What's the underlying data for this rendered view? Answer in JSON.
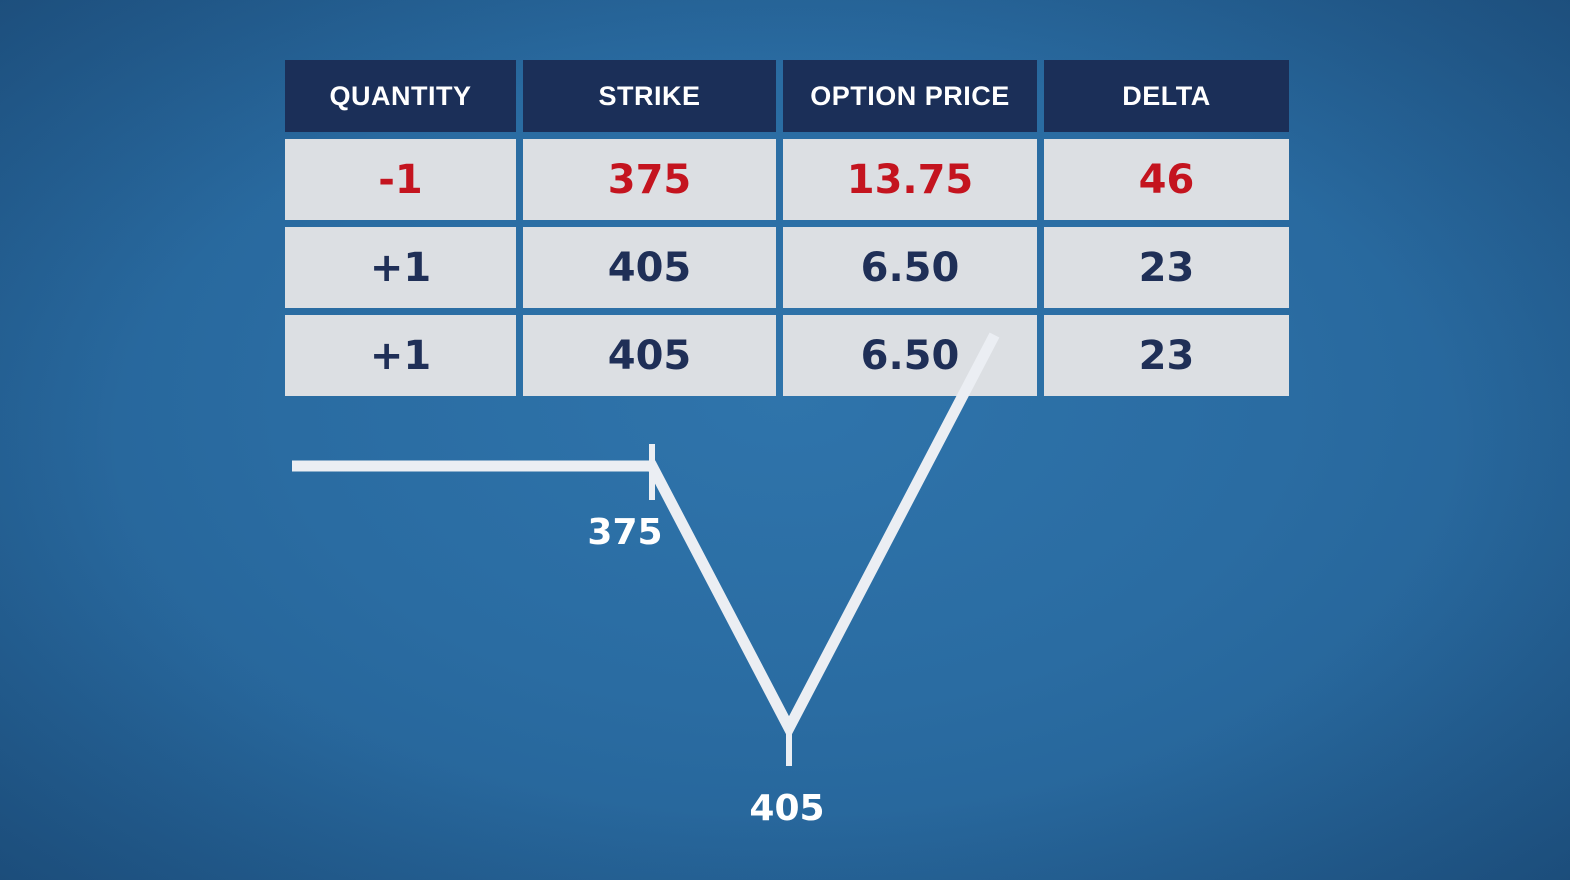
{
  "table": {
    "headers": [
      "QUANTITY",
      "STRIKE",
      "OPTION PRICE",
      "DELTA"
    ],
    "rows": [
      {
        "quantity": "-1",
        "strike": "375",
        "option_price": "13.75",
        "delta": "46",
        "highlight": "short"
      },
      {
        "quantity": "+1",
        "strike": "405",
        "option_price": "6.50",
        "delta": "23",
        "highlight": "long"
      },
      {
        "quantity": "+1",
        "strike": "405",
        "option_price": "6.50",
        "delta": "23",
        "highlight": "long"
      }
    ]
  },
  "chart_data": {
    "type": "line",
    "x_labels": [
      "375",
      "405"
    ],
    "strikes": [
      375,
      405
    ],
    "payoff": {
      "x": [
        300,
        375,
        405,
        450
      ],
      "y": [
        0,
        0,
        -30,
        15
      ]
    },
    "colors": {
      "line": "#ebeef3",
      "short_text": "#c4141f",
      "long_text": "#1f2f57",
      "header_bg": "#1b2f58",
      "cell_bg": "#dcdfe3"
    }
  }
}
